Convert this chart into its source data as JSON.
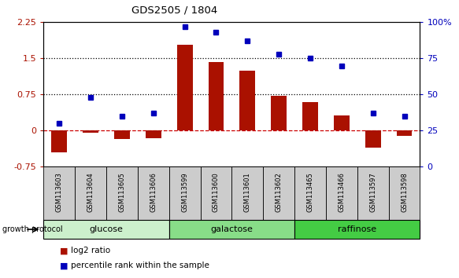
{
  "title": "GDS2505 / 1804",
  "samples": [
    "GSM113603",
    "GSM113604",
    "GSM113605",
    "GSM113606",
    "GSM113599",
    "GSM113600",
    "GSM113601",
    "GSM113602",
    "GSM113465",
    "GSM113466",
    "GSM113597",
    "GSM113598"
  ],
  "log2_ratio": [
    -0.45,
    -0.05,
    -0.18,
    -0.15,
    1.78,
    1.42,
    1.25,
    0.72,
    0.6,
    0.32,
    -0.35,
    -0.1
  ],
  "percentile_rank": [
    30,
    48,
    35,
    37,
    97,
    93,
    87,
    78,
    75,
    70,
    37,
    35
  ],
  "groups": [
    {
      "name": "glucose",
      "start": 0,
      "end": 4,
      "color": "#ccf0cc"
    },
    {
      "name": "galactose",
      "start": 4,
      "end": 8,
      "color": "#88dd88"
    },
    {
      "name": "raffinose",
      "start": 8,
      "end": 12,
      "color": "#44cc44"
    }
  ],
  "ylim_left": [
    -0.75,
    2.25
  ],
  "ylim_right": [
    0,
    100
  ],
  "yticks_left": [
    -0.75,
    0,
    0.75,
    1.5,
    2.25
  ],
  "yticks_right": [
    0,
    25,
    50,
    75,
    100
  ],
  "ytick_labels_left": [
    "-0.75",
    "0",
    "0.75",
    "1.5",
    "2.25"
  ],
  "ytick_labels_right": [
    "0",
    "25",
    "50",
    "75",
    "100%"
  ],
  "hlines": [
    0.75,
    1.5
  ],
  "bar_color": "#aa1100",
  "dot_color": "#0000bb",
  "zero_line_color": "#cc0000",
  "legend_log2": "log2 ratio",
  "legend_pct": "percentile rank within the sample",
  "sample_band_color": "#cccccc",
  "bar_width": 0.5
}
